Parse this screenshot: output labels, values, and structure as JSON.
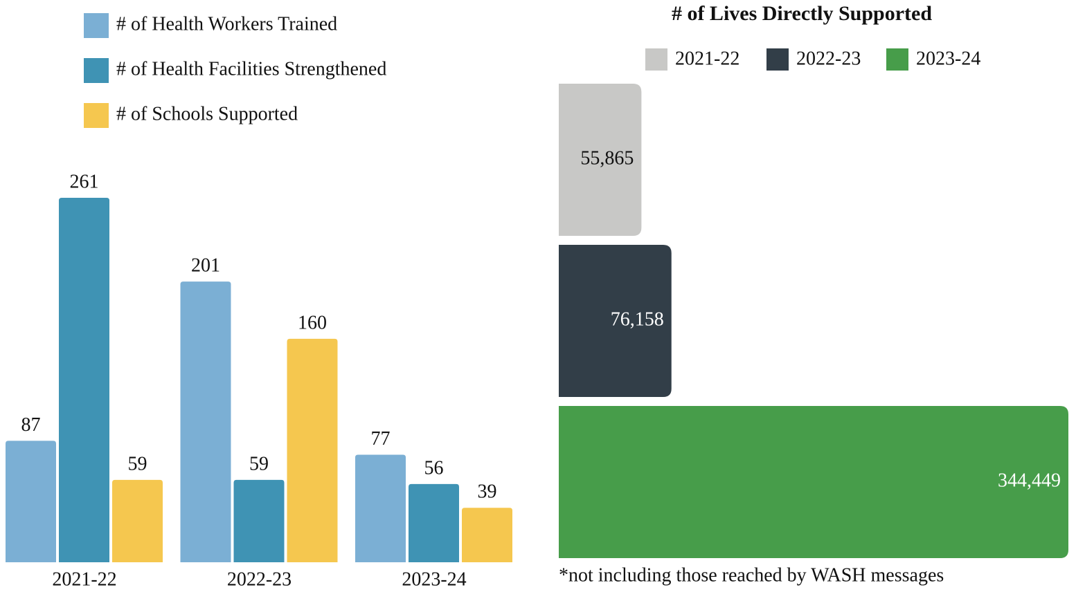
{
  "chart_data": [
    {
      "type": "bar",
      "categories": [
        "2021-22",
        "2022-23",
        "2023-24"
      ],
      "series": [
        {
          "name": "# of Health Workers Trained",
          "color": "#7bafd4",
          "values": [
            87,
            201,
            77
          ]
        },
        {
          "name": "# of Health Facilities Strengthened",
          "color": "#3f93b4",
          "values": [
            261,
            59,
            56
          ]
        },
        {
          "name": "# of Schools Supported",
          "color": "#f5c74f",
          "values": [
            59,
            160,
            39
          ]
        }
      ]
    },
    {
      "type": "hbar",
      "title": "# of Lives Directly Supported",
      "categories": [
        "2021-22",
        "2022-23",
        "2023-24"
      ],
      "values": [
        55865,
        76158,
        344449
      ],
      "value_labels": [
        "55,865",
        "76,158",
        "344,449"
      ],
      "colors": [
        "#c8c8c6",
        "#323e48",
        "#479d4a"
      ],
      "footnote": "*not including those reached by WASH messages"
    }
  ]
}
